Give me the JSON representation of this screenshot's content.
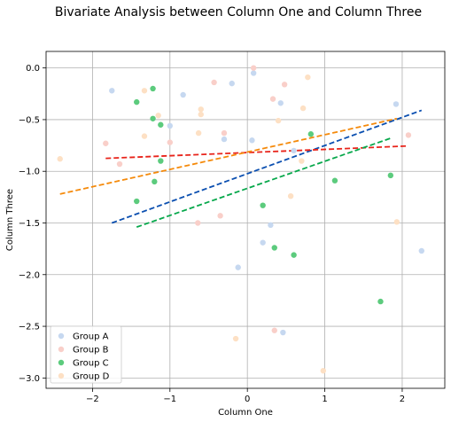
{
  "chart_data": {
    "type": "scatter",
    "title": "Bivariate Analysis between Column One and Column Three",
    "xlabel": "Column One",
    "ylabel": "Column Three",
    "xlim": [
      -2.6,
      2.55
    ],
    "ylim": [
      -3.1,
      0.16
    ],
    "grid": true,
    "legend_position": "lower-left",
    "xticks": [
      -2,
      -1,
      0,
      1,
      2
    ],
    "xtick_labels": [
      "−2",
      "−1",
      "0",
      "1",
      "2"
    ],
    "yticks": [
      0.0,
      -0.5,
      -1.0,
      -1.5,
      -2.0,
      -2.5,
      -3.0
    ],
    "ytick_labels": [
      "0.0",
      "−0.5",
      "−1.0",
      "−1.5",
      "−2.0",
      "−2.5",
      "−3.0"
    ],
    "series": [
      {
        "name": "Group A",
        "color": "#c6d8f0",
        "line_color": "#0b4fb0",
        "points": [
          [
            -1.75,
            -0.22
          ],
          [
            -0.83,
            -0.26
          ],
          [
            -0.2,
            -0.15
          ],
          [
            0.08,
            -0.05
          ],
          [
            0.43,
            -0.34
          ],
          [
            -0.3,
            -0.69
          ],
          [
            0.06,
            -0.7
          ],
          [
            -1.0,
            -0.56
          ],
          [
            1.92,
            -0.35
          ],
          [
            0.6,
            -0.8
          ],
          [
            0.3,
            -1.52
          ],
          [
            0.2,
            -1.69
          ],
          [
            -0.12,
            -1.93
          ],
          [
            2.25,
            -1.77
          ],
          [
            0.46,
            -2.56
          ]
        ],
        "fit": [
          [
            -1.75,
            -1.5
          ],
          [
            2.25,
            -0.41
          ]
        ]
      },
      {
        "name": "Group B",
        "color": "#f9cfc9",
        "line_color": "#e8231a",
        "points": [
          [
            0.08,
            0.0
          ],
          [
            -0.43,
            -0.14
          ],
          [
            0.48,
            -0.16
          ],
          [
            0.33,
            -0.3
          ],
          [
            -0.3,
            -0.63
          ],
          [
            -1.0,
            -0.72
          ],
          [
            -1.83,
            -0.73
          ],
          [
            -1.65,
            -0.93
          ],
          [
            2.08,
            -0.65
          ],
          [
            -0.35,
            -1.43
          ],
          [
            -0.64,
            -1.5
          ],
          [
            0.35,
            -2.54
          ]
        ],
        "fit": [
          [
            -1.83,
            -0.875
          ],
          [
            2.08,
            -0.755
          ]
        ]
      },
      {
        "name": "Group C",
        "color": "#5ccb7d",
        "line_color": "#07a84b",
        "points": [
          [
            -1.22,
            -0.2
          ],
          [
            -1.43,
            -0.33
          ],
          [
            -1.22,
            -0.49
          ],
          [
            -1.12,
            -0.55
          ],
          [
            0.82,
            -0.64
          ],
          [
            -1.12,
            -0.9
          ],
          [
            -1.2,
            -1.1
          ],
          [
            1.13,
            -1.09
          ],
          [
            1.85,
            -1.04
          ],
          [
            -1.43,
            -1.29
          ],
          [
            0.2,
            -1.33
          ],
          [
            0.35,
            -1.74
          ],
          [
            0.6,
            -1.81
          ],
          [
            1.72,
            -2.26
          ]
        ],
        "fit": [
          [
            -1.43,
            -1.54
          ],
          [
            1.85,
            -0.68
          ]
        ]
      },
      {
        "name": "Group D",
        "color": "#fde0c4",
        "line_color": "#f58a0b",
        "points": [
          [
            0.78,
            -0.09
          ],
          [
            -1.33,
            -0.22
          ],
          [
            -1.15,
            -0.46
          ],
          [
            -0.6,
            -0.4
          ],
          [
            0.72,
            -0.39
          ],
          [
            -0.6,
            -0.45
          ],
          [
            0.4,
            -0.51
          ],
          [
            -0.63,
            -0.63
          ],
          [
            -1.33,
            -0.66
          ],
          [
            -2.42,
            -0.88
          ],
          [
            0.7,
            -0.9
          ],
          [
            0.56,
            -1.24
          ],
          [
            1.93,
            -1.49
          ],
          [
            -0.15,
            -2.62
          ],
          [
            0.98,
            -2.93
          ]
        ],
        "fit": [
          [
            -2.42,
            -1.22
          ],
          [
            1.93,
            -0.49
          ]
        ]
      }
    ]
  }
}
